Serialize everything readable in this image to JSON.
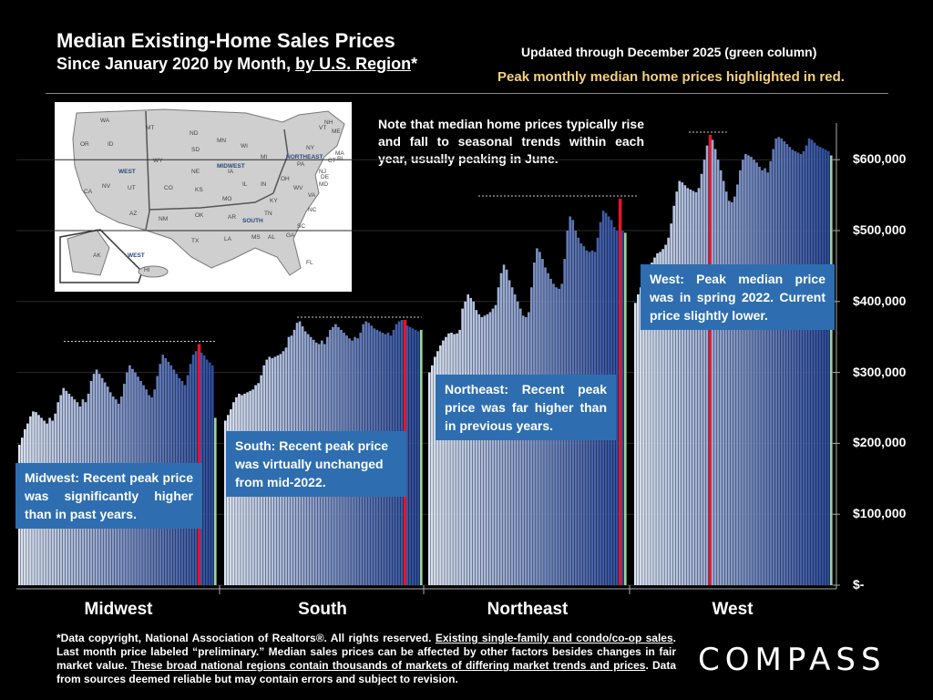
{
  "header": {
    "title_line1": "Median Existing-Home Sales Prices",
    "title_line2_prefix": "Since January 2020 by Month, ",
    "title_line2_link": "by U.S. Region",
    "title_line2_suffix": "*",
    "updated_note": "Updated through December 2025 (green column)",
    "peak_note": "Peak monthly median home prices highlighted in red."
  },
  "map": {
    "states": [
      "WA",
      "MT",
      "ND",
      "MN",
      "WI",
      "MI",
      "NY",
      "VT",
      "NH",
      "ME",
      "MA",
      "CT",
      "RI",
      "PA",
      "NJ",
      "DE",
      "MD",
      "OR",
      "ID",
      "SD",
      "WY",
      "NE",
      "IA",
      "IL",
      "IN",
      "OH",
      "WV",
      "VA",
      "NV",
      "UT",
      "CO",
      "KS",
      "MO",
      "KY",
      "NC",
      "CA",
      "AZ",
      "NM",
      "OK",
      "AR",
      "TN",
      "SC",
      "TX",
      "LA",
      "MS",
      "AL",
      "GA",
      "FL",
      "AK",
      "HI"
    ],
    "region_labels": [
      "WEST",
      "MIDWEST",
      "NORTHEAST",
      "SOUTH",
      "WEST"
    ]
  },
  "seasonal_note": "Note that median home prices typically rise and fall to seasonal trends within each year, usually peaking in June.",
  "callouts": {
    "midwest": "Midwest: Recent peak price was significantly higher than in past years.",
    "south": "South: Recent peak price was virtually unchanged from mid-2022.",
    "northeast": "Northeast: Recent peak price was far higher than in previous years.",
    "west": "West: Peak median price was in spring 2022. Current price slightly lower."
  },
  "footnote": {
    "p1": "*Data copyright, National Association of Realtors®. All rights reserved. ",
    "u1": "Existing single-family and condo/co-op sales",
    "p2": ". Last month price labeled “preliminary.” Median sales prices can be affected by other factors besides changes in fair market value. ",
    "u2": "These broad national regions contain thousands of markets of differing market trends and prices",
    "p3": ". Data from sources deemed reliable but may contain errors and subject to revision."
  },
  "logo": "COMPASS",
  "colors": {
    "background": "#000000",
    "bar_light": "#dde6f5",
    "bar_dark": "#2b4a9a",
    "peak": "#e8132a",
    "latest": "#9ed49a",
    "callout": "#2e6eb0"
  },
  "chart_data": {
    "type": "bar",
    "ylim": [
      0,
      650000
    ],
    "yticks": [
      0,
      100000,
      200000,
      300000,
      400000,
      500000,
      600000
    ],
    "ytick_labels": [
      "$-",
      "$100,000",
      "$200,000",
      "$300,000",
      "$400,000",
      "$500,000",
      "$600,000"
    ],
    "period": "January 2020 - December 2025, monthly",
    "series": [
      {
        "name": "Midwest",
        "peak_index": 65,
        "values": [
          198000,
          208000,
          220000,
          228000,
          238000,
          245000,
          244000,
          240000,
          236000,
          232000,
          228000,
          236000,
          232000,
          242000,
          258000,
          268000,
          278000,
          274000,
          270000,
          266000,
          262000,
          258000,
          252000,
          262000,
          258000,
          270000,
          288000,
          298000,
          304000,
          298000,
          292000,
          286000,
          280000,
          272000,
          266000,
          262000,
          256000,
          266000,
          284000,
          300000,
          310000,
          305000,
          300000,
          294000,
          288000,
          282000,
          276000,
          268000,
          265000,
          276000,
          295000,
          312000,
          325000,
          320000,
          315000,
          310000,
          304000,
          298000,
          292000,
          288000,
          282000,
          296000,
          312000,
          325000,
          330000,
          340000,
          328000,
          324000,
          318000,
          314000,
          310000,
          236000
        ]
      },
      {
        "name": "South",
        "peak_index": 65,
        "values": [
          232000,
          240000,
          248000,
          258000,
          265000,
          270000,
          268000,
          270000,
          272000,
          274000,
          276000,
          282000,
          285000,
          296000,
          310000,
          318000,
          322000,
          320000,
          322000,
          324000,
          326000,
          330000,
          335000,
          350000,
          352000,
          360000,
          370000,
          372000,
          365000,
          358000,
          354000,
          350000,
          346000,
          342000,
          340000,
          345000,
          340000,
          350000,
          360000,
          364000,
          368000,
          364000,
          360000,
          356000,
          352000,
          348000,
          345000,
          350000,
          348000,
          356000,
          368000,
          372000,
          370000,
          366000,
          362000,
          360000,
          358000,
          356000,
          354000,
          356000,
          352000,
          360000,
          368000,
          372000,
          374000,
          374000,
          366000,
          364000,
          362000,
          360000,
          358000,
          360000
        ]
      },
      {
        "name": "Northeast",
        "peak_index": 69,
        "values": [
          300000,
          310000,
          322000,
          330000,
          338000,
          345000,
          350000,
          355000,
          356000,
          354000,
          355000,
          360000,
          390000,
          400000,
          410000,
          405000,
          400000,
          388000,
          382000,
          378000,
          380000,
          382000,
          385000,
          390000,
          395000,
          420000,
          440000,
          452000,
          445000,
          430000,
          420000,
          410000,
          400000,
          390000,
          380000,
          378000,
          385000,
          420000,
          455000,
          475000,
          470000,
          460000,
          448000,
          440000,
          432000,
          425000,
          420000,
          418000,
          425000,
          460000,
          500000,
          520000,
          515000,
          500000,
          490000,
          482000,
          478000,
          472000,
          470000,
          472000,
          470000,
          490000,
          512000,
          528000,
          525000,
          520000,
          515000,
          505000,
          500000,
          545000,
          500000,
          497000
        ]
      },
      {
        "name": "West",
        "peak_index": 27,
        "values": [
          398000,
          410000,
          420000,
          432000,
          440000,
          448000,
          455000,
          462000,
          468000,
          470000,
          474000,
          480000,
          490000,
          510000,
          535000,
          555000,
          570000,
          568000,
          564000,
          560000,
          558000,
          556000,
          554000,
          560000,
          580000,
          600000,
          620000,
          635000,
          628000,
          615000,
          600000,
          585000,
          570000,
          555000,
          542000,
          540000,
          548000,
          565000,
          585000,
          600000,
          608000,
          606000,
          604000,
          600000,
          596000,
          590000,
          585000,
          588000,
          582000,
          598000,
          615000,
          630000,
          632000,
          630000,
          626000,
          622000,
          618000,
          614000,
          612000,
          610000,
          608000,
          612000,
          620000,
          630000,
          628000,
          624000,
          620000,
          618000,
          616000,
          614000,
          612000,
          606000
        ]
      }
    ]
  }
}
